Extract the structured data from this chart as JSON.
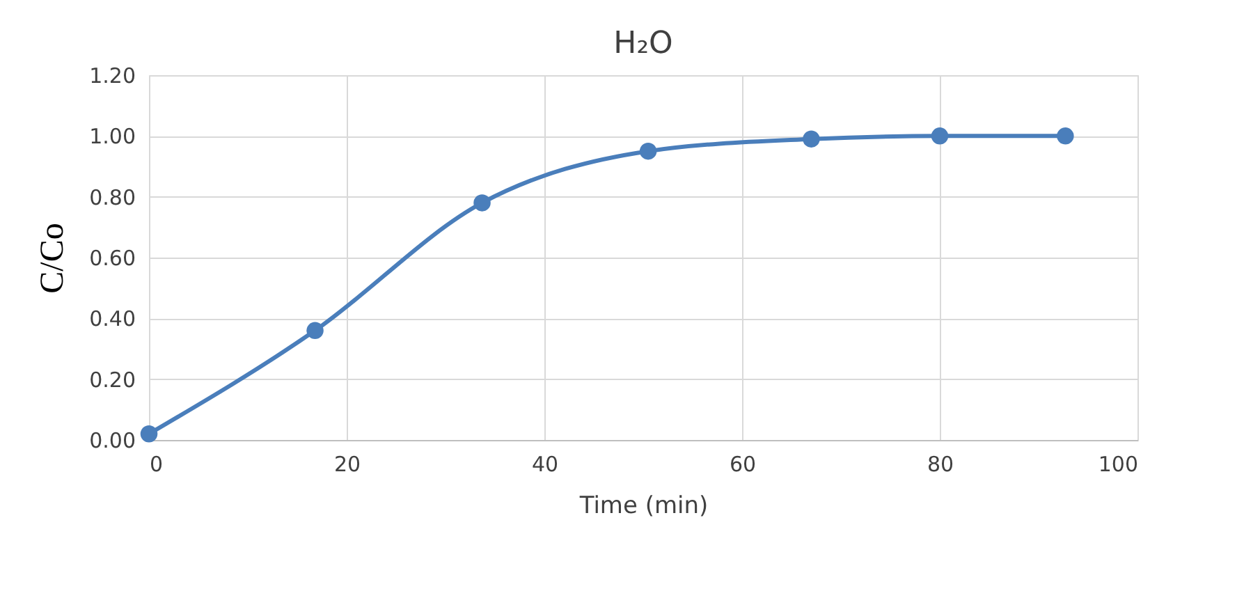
{
  "chart_data": {
    "type": "line",
    "title": "H₂O",
    "xlabel": "Time (min)",
    "ylabel": "C/Co",
    "x": [
      0,
      16.8,
      33.7,
      50.5,
      67.0,
      80.0,
      92.7
    ],
    "series": [
      {
        "color": "#4a7ebb",
        "values": [
          0.02,
          0.36,
          0.78,
          0.95,
          0.99,
          1.0,
          1.0
        ]
      }
    ],
    "xlim": [
      0,
      100
    ],
    "xticks": [
      0,
      20,
      40,
      60,
      80,
      100
    ],
    "ylim": [
      0,
      1.2
    ],
    "yticks": [
      {
        "value": 0,
        "label": "0.00"
      },
      {
        "value": 0.2,
        "label": "0.20"
      },
      {
        "value": 0.4,
        "label": "0.40"
      },
      {
        "value": 0.6,
        "label": "0.60"
      },
      {
        "value": 0.8,
        "label": "0.80"
      },
      {
        "value": 1.0,
        "label": "1.00"
      },
      {
        "value": 1.2,
        "label": "1.20"
      }
    ],
    "grid": true,
    "marker": "circle",
    "line_style": "solid"
  }
}
